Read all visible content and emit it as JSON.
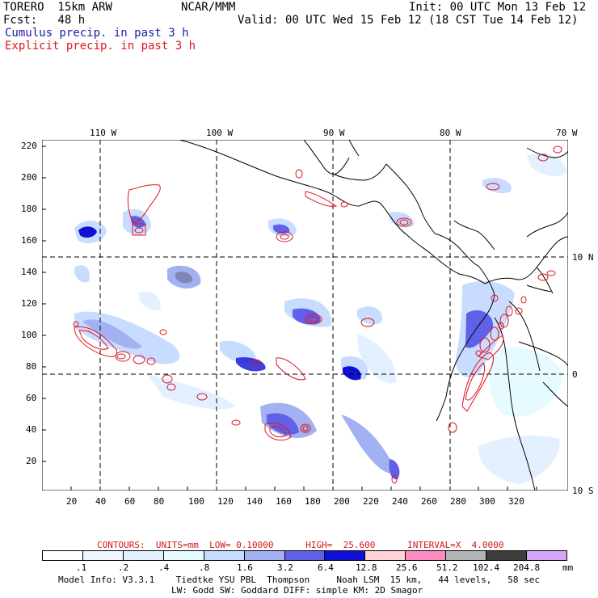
{
  "header": {
    "line1_left": "TORERO  15km ARW",
    "line1_mid": "NCAR/MMM",
    "line1_right": "Init: 00 UTC Mon 13 Feb 12",
    "line2_left": "Fcst:   48 h",
    "line2_right": "Valid: 00 UTC Wed 15 Feb 12 (18 CST Tue 14 Feb 12)",
    "cumulus": "Cumulus precip. in past 3 h",
    "explicit": "Explicit precip. in past 3 h"
  },
  "longitude_labels": [
    "110 W",
    "100 W",
    "90 W",
    "80 W",
    "70 W"
  ],
  "latitude_labels": [
    "10 N",
    "0",
    "10 S"
  ],
  "y_ticks": [
    "220",
    "200",
    "180",
    "160",
    "140",
    "120",
    "100",
    "80",
    "60",
    "40",
    "20"
  ],
  "x_ticks": [
    "20",
    "40",
    "60",
    "80",
    "100",
    "120",
    "140",
    "160",
    "180",
    "200",
    "220",
    "240",
    "260",
    "280",
    "300",
    "320"
  ],
  "contours": "CONTOURS:  UNITS=mm  LOW= 0.10000      HIGH=  25.600      INTERVAL=X  4.0000",
  "legend": {
    "unit": "mm",
    "labels": [
      ".1",
      ".2",
      ".4",
      ".8",
      "1.6",
      "3.2",
      "6.4",
      "12.8",
      "25.6",
      "51.2",
      "102.4",
      "204.8"
    ],
    "colors": [
      "#ffffff",
      "#eef5ff",
      "#e3f0ff",
      "#e6fbff",
      "#c8dcff",
      "#a3b0f2",
      "#6060e8",
      "#1010d4",
      "#ffd2d6",
      "#ff8cc0",
      "#b4b4b4",
      "#3c3c3c",
      "#d7a4f5"
    ]
  },
  "model_info_1": "Model Info: V3.3.1    Tiedtke YSU PBL  Thompson     Noah LSM  15 km,   44 levels,   58 sec",
  "model_info_2": "LW: Godd SW: Goddard DIFF: simple KM: 2D Smagor"
}
